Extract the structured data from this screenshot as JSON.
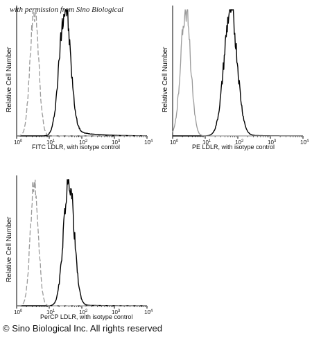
{
  "watermark": "with permission from Sino Biological",
  "copyright": "© Sino Biological Inc. All rights reserved",
  "colors": {
    "sample": "#000000",
    "isotype": "#9a9a9a"
  },
  "chart_data": [
    {
      "type": "line",
      "ylabel": "Relative Cell Number",
      "xlabel": "FITC  LDLR,  with isotype control",
      "x_scale": "log",
      "xlim": [
        1,
        10000
      ],
      "x_ticks": [
        "10",
        "10",
        "10",
        "10",
        "10"
      ],
      "x_tick_exponents": [
        "0",
        "1",
        "2",
        "3",
        "4"
      ],
      "series": [
        {
          "role": "sample",
          "peak_x": 30,
          "log_sigma": 0.17,
          "tail": 0.06,
          "style": "solid"
        },
        {
          "role": "isotype",
          "peak_x": 3.5,
          "log_sigma": 0.13,
          "style": "dashed"
        }
      ]
    },
    {
      "type": "line",
      "ylabel": "Relative Cell Number",
      "xlabel": "PE  LDLR,  with isotype control",
      "x_scale": "log",
      "xlim": [
        1,
        10000
      ],
      "x_ticks": [
        "10",
        "10",
        "10",
        "10",
        "10"
      ],
      "x_tick_exponents": [
        "0",
        "1",
        "2",
        "3",
        "4"
      ],
      "series": [
        {
          "role": "sample",
          "peak_x": 60,
          "log_sigma": 0.2,
          "tail": 0.01,
          "style": "solid"
        },
        {
          "role": "isotype",
          "peak_x": 2.5,
          "log_sigma": 0.15,
          "style": "solid"
        }
      ]
    },
    {
      "type": "line",
      "ylabel": "Relative Cell Number",
      "xlabel": "PerCP LDLR, with isotype control",
      "x_scale": "log",
      "xlim": [
        1,
        10000
      ],
      "x_ticks": [
        "10",
        "10",
        "10",
        "10",
        "10"
      ],
      "x_tick_exponents": [
        "0",
        "1",
        "2",
        "3",
        "4"
      ],
      "series": [
        {
          "role": "sample",
          "peak_x": 40,
          "log_sigma": 0.16,
          "tail": 0.01,
          "style": "solid"
        },
        {
          "role": "isotype",
          "peak_x": 3.5,
          "log_sigma": 0.12,
          "style": "dashed"
        }
      ]
    }
  ]
}
